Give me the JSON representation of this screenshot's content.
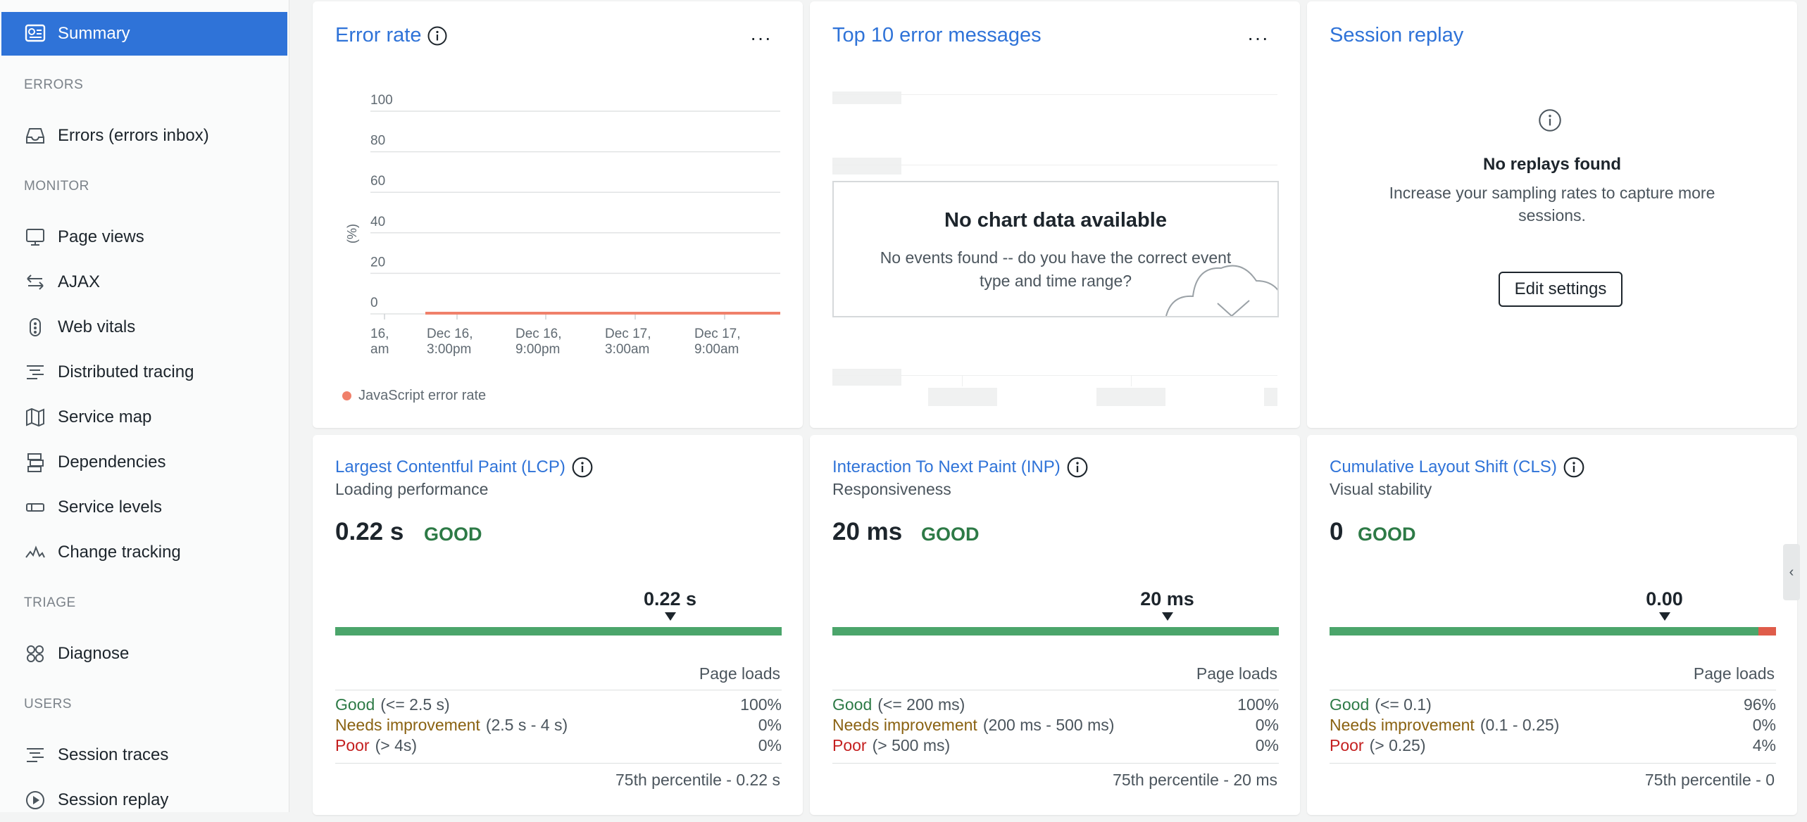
{
  "sidebar": {
    "summary": "Summary",
    "sections": {
      "errors": "ERRORS",
      "monitor": "MONITOR",
      "triage": "TRIAGE",
      "users": "USERS"
    },
    "items": {
      "errors_inbox": "Errors (errors inbox)",
      "page_views": "Page views",
      "ajax": "AJAX",
      "web_vitals": "Web vitals",
      "distributed_tracing": "Distributed tracing",
      "service_map": "Service map",
      "dependencies": "Dependencies",
      "service_levels": "Service levels",
      "change_tracking": "Change tracking",
      "diagnose": "Diagnose",
      "session_traces": "Session traces",
      "session_replay": "Session replay"
    }
  },
  "error_rate": {
    "title": "Error rate",
    "more": "···",
    "ylabel": "(%)",
    "legend": "JavaScript error rate",
    "chart_data": {
      "type": "line",
      "ylabel": "(%)",
      "ylim": [
        0,
        100
      ],
      "y_ticks": [
        "100",
        "80",
        "60",
        "40",
        "20",
        "0"
      ],
      "x_ticks": [
        {
          "l1": "16,",
          "l2": "am"
        },
        {
          "l1": "Dec 16,",
          "l2": "3:00pm"
        },
        {
          "l1": "Dec 16,",
          "l2": "9:00pm"
        },
        {
          "l1": "Dec 17,",
          "l2": "3:00am"
        },
        {
          "l1": "Dec 17,",
          "l2": "9:00am"
        }
      ],
      "series": [
        {
          "name": "JavaScript error rate",
          "color": "#f0806a",
          "values": [
            0,
            0,
            0,
            0,
            0
          ]
        }
      ],
      "grid": true
    }
  },
  "top_errors": {
    "title": "Top 10 error messages",
    "more": "···",
    "empty_title": "No chart data available",
    "empty_text": "No events found -- do you have the correct event type and time range?"
  },
  "session_replay": {
    "title": "Session replay",
    "empty_title": "No replays found",
    "empty_text": "Increase your sampling rates to capture more sessions.",
    "button": "Edit settings"
  },
  "vitals": [
    {
      "title": "Largest Contentful Paint (LCP)",
      "subtitle": "Loading performance",
      "value": "0.22 s",
      "rating": "GOOD",
      "marker": "0.22 s",
      "marker_fraction": 0.75,
      "good_share": 1.0,
      "poor_share": 0.0,
      "page_loads": "Page loads",
      "rows": [
        {
          "label": "Good",
          "range": "(<= 2.5 s)",
          "pct": "100%"
        },
        {
          "label": "Needs improvement",
          "range": "(2.5 s - 4 s)",
          "pct": "0%"
        },
        {
          "label": "Poor",
          "range": "(> 4s)",
          "pct": "0%"
        }
      ],
      "percentile": "75th percentile - 0.22 s"
    },
    {
      "title": "Interaction To Next Paint (INP)",
      "subtitle": "Responsiveness",
      "value": "20 ms",
      "rating": "GOOD",
      "marker": "20 ms",
      "marker_fraction": 0.75,
      "good_share": 1.0,
      "poor_share": 0.0,
      "page_loads": "Page loads",
      "rows": [
        {
          "label": "Good",
          "range": "(<= 200 ms)",
          "pct": "100%"
        },
        {
          "label": "Needs improvement",
          "range": "(200 ms - 500 ms)",
          "pct": "0%"
        },
        {
          "label": "Poor",
          "range": "(> 500 ms)",
          "pct": "0%"
        }
      ],
      "percentile": "75th percentile - 20 ms"
    },
    {
      "title": "Cumulative Layout Shift (CLS)",
      "subtitle": "Visual stability",
      "value": "0",
      "rating": "GOOD",
      "marker": "0.00",
      "marker_fraction": 0.75,
      "good_share": 0.96,
      "poor_share": 0.04,
      "page_loads": "Page loads",
      "rows": [
        {
          "label": "Good",
          "range": "(<= 0.1)",
          "pct": "96%"
        },
        {
          "label": "Needs improvement",
          "range": "(0.1 - 0.25)",
          "pct": "0%"
        },
        {
          "label": "Poor",
          "range": "(> 0.25)",
          "pct": "4%"
        }
      ],
      "percentile": "75th percentile - 0"
    }
  ],
  "colors": {
    "accent": "#2f73d8",
    "good": "#4ba56b",
    "poor": "#df5c4a",
    "series": "#f0806a"
  }
}
